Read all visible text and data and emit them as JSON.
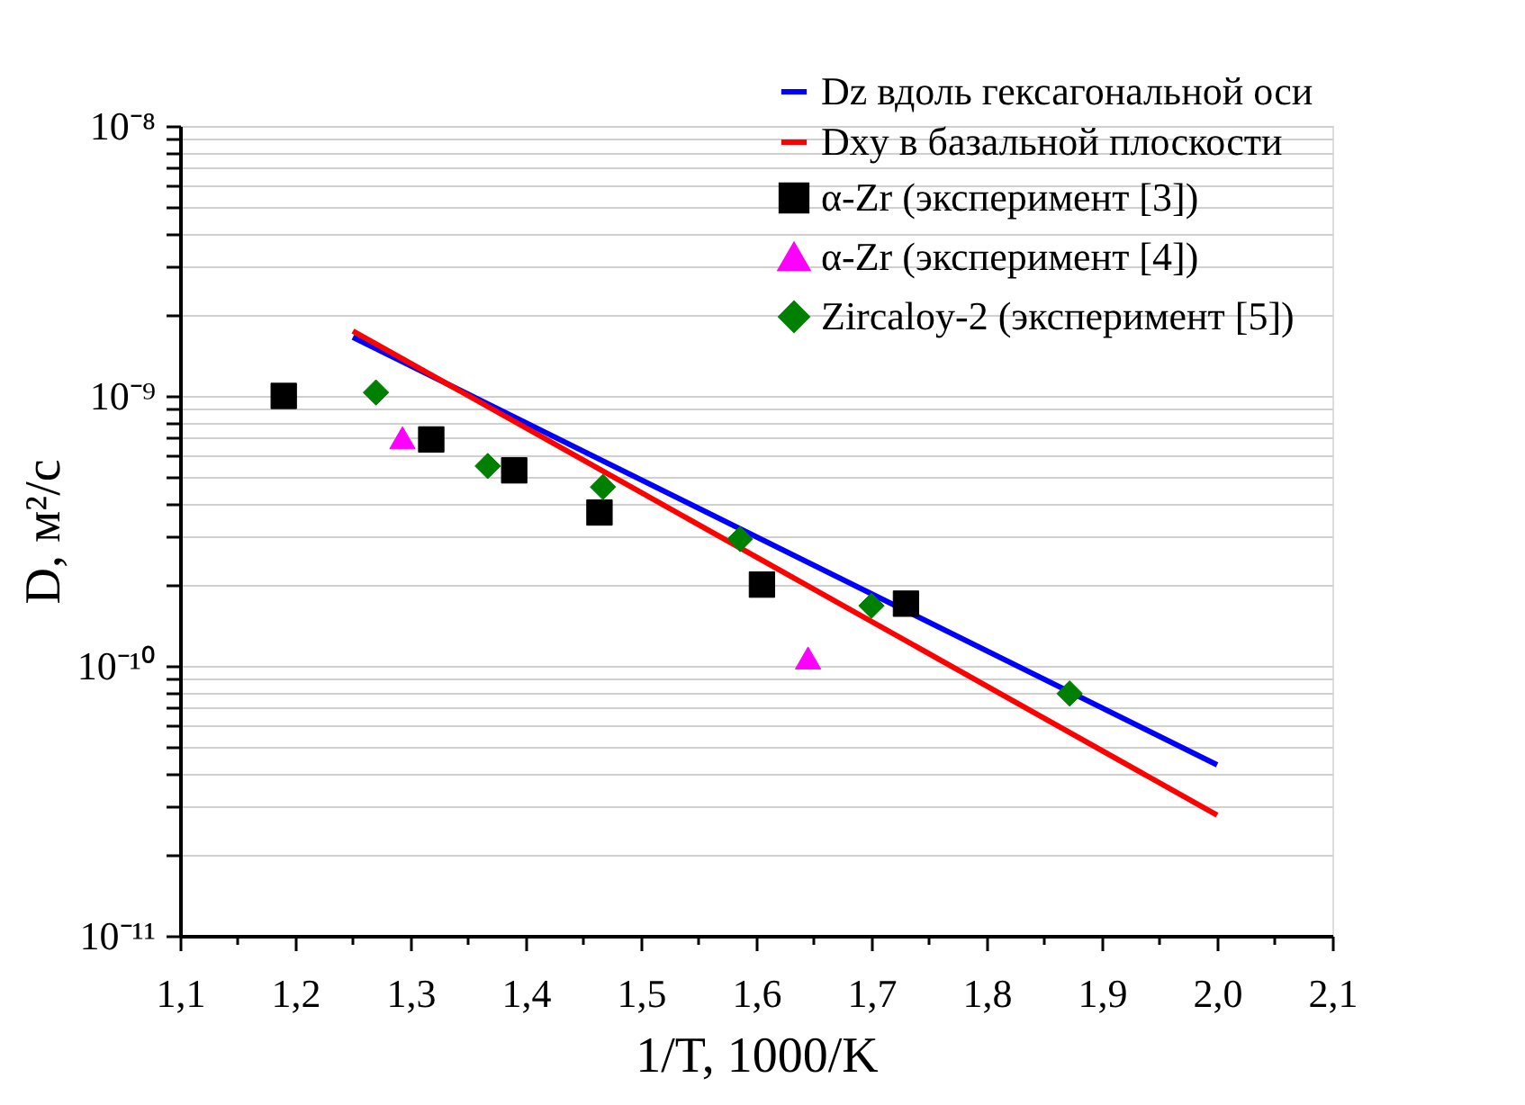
{
  "chart_data": {
    "type": "scatter",
    "xlabel": "1/T, 1000/K",
    "ylabel": "D, м²/с",
    "log": "y",
    "grid": "y",
    "legend": "top right",
    "xlim": [
      1.1,
      2.1
    ],
    "xticks": [
      {
        "value": 1.1,
        "label": "1,1"
      },
      {
        "value": 1.15,
        "label": null
      },
      {
        "value": 1.2,
        "label": "1,2"
      },
      {
        "value": 1.25,
        "label": null
      },
      {
        "value": 1.3,
        "label": "1,3"
      },
      {
        "value": 1.35,
        "label": null
      },
      {
        "value": 1.4,
        "label": "1,4"
      },
      {
        "value": 1.45,
        "label": null
      },
      {
        "value": 1.5,
        "label": "1,5"
      },
      {
        "value": 1.55,
        "label": null
      },
      {
        "value": 1.6,
        "label": "1,6"
      },
      {
        "value": 1.65,
        "label": null
      },
      {
        "value": 1.7,
        "label": "1,7"
      },
      {
        "value": 1.75,
        "label": null
      },
      {
        "value": 1.8,
        "label": "1,8"
      },
      {
        "value": 1.85,
        "label": null
      },
      {
        "value": 1.9,
        "label": "1,9"
      },
      {
        "value": 1.95,
        "label": null
      },
      {
        "value": 2.0,
        "label": "2,0"
      },
      {
        "value": 2.05,
        "label": null
      },
      {
        "value": 2.1,
        "label": "2,1"
      }
    ],
    "ylim": [
      1e-11,
      1e-08
    ],
    "yticks": [
      {
        "value": 1e-11,
        "label": "10⁻¹¹"
      },
      {
        "value": 2e-11,
        "label": null
      },
      {
        "value": 3e-11,
        "label": null
      },
      {
        "value": 4e-11,
        "label": null
      },
      {
        "value": 5e-11,
        "label": null
      },
      {
        "value": 6e-11,
        "label": null
      },
      {
        "value": 7e-11,
        "label": null
      },
      {
        "value": 8e-11,
        "label": null
      },
      {
        "value": 9e-11,
        "label": null
      },
      {
        "value": 1e-10,
        "label": "10⁻¹⁰"
      },
      {
        "value": 2e-10,
        "label": null
      },
      {
        "value": 3e-10,
        "label": null
      },
      {
        "value": 4e-10,
        "label": null
      },
      {
        "value": 5e-10,
        "label": null
      },
      {
        "value": 6e-10,
        "label": null
      },
      {
        "value": 7e-10,
        "label": null
      },
      {
        "value": 8e-10,
        "label": null
      },
      {
        "value": 9e-10,
        "label": null
      },
      {
        "value": 1e-09,
        "label": "10⁻⁹"
      },
      {
        "value": 2e-09,
        "label": null
      },
      {
        "value": 3e-09,
        "label": null
      },
      {
        "value": 4e-09,
        "label": null
      },
      {
        "value": 5e-09,
        "label": null
      },
      {
        "value": 6e-09,
        "label": null
      },
      {
        "value": 7e-09,
        "label": null
      },
      {
        "value": 8e-09,
        "label": null
      },
      {
        "value": 9e-09,
        "label": null
      },
      {
        "value": 1e-08,
        "label": "10⁻⁸"
      }
    ],
    "series": [
      {
        "name": "Dz вдоль гексагональной оси",
        "type": "line",
        "color": "#0000ff",
        "line_style": "solid",
        "x": [
          1.25,
          2.0
        ],
        "values": [
          1.65e-09,
          4.3e-11
        ]
      },
      {
        "name": "Dxy в базальной плоскости",
        "type": "line",
        "color": "#ff0000",
        "line_style": "solid",
        "x": [
          1.25,
          2.0
        ],
        "values": [
          1.74e-09,
          2.8e-11
        ]
      },
      {
        "name": "α-Zr (эксперимент [3])",
        "marker": "square",
        "color": "#000000",
        "x": [
          1.19,
          1.318,
          1.39,
          1.464,
          1.605,
          1.73
        ],
        "values": [
          1e-09,
          6.9e-10,
          5.3e-10,
          3.7e-10,
          2e-10,
          1.7e-10
        ]
      },
      {
        "name": "α-Zr (эксперимент [4])",
        "marker": "triangle",
        "color": "#ff00ff",
        "x": [
          1.293,
          1.645
        ],
        "values": [
          7e-10,
          1.07e-10
        ]
      },
      {
        "name": "Zircaloy-2 (эксперимент [5])",
        "marker": "diamond",
        "color": "#008000",
        "x": [
          1.27,
          1.367,
          1.467,
          1.586,
          1.7,
          1.872
        ],
        "values": [
          1.03e-09,
          5.5e-10,
          4.6e-10,
          2.95e-10,
          1.67e-10,
          7.9e-11
        ]
      }
    ]
  }
}
